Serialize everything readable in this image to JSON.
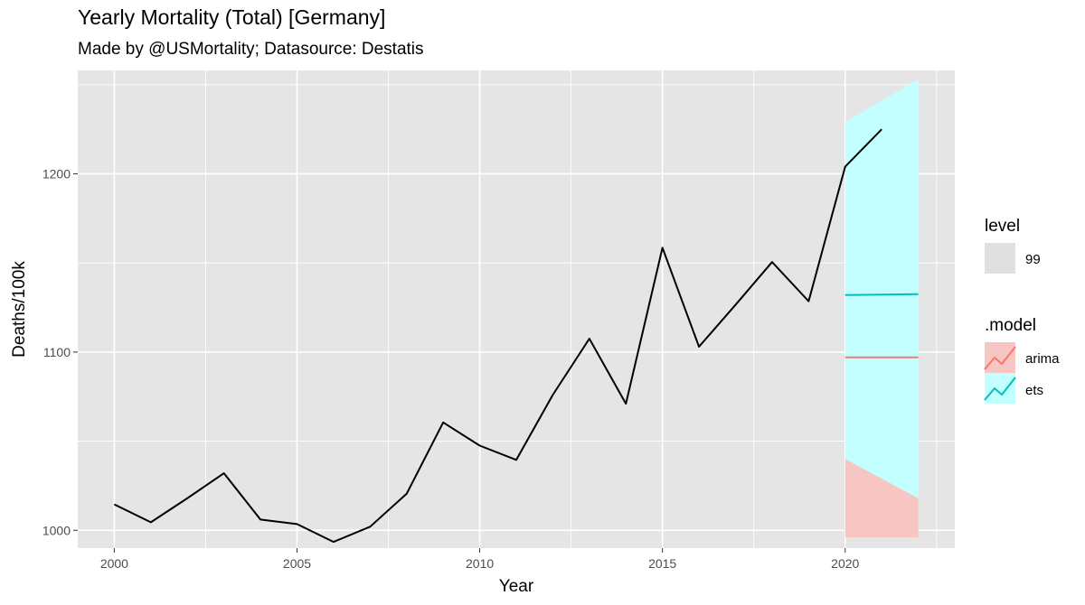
{
  "title": "Yearly Mortality (Total) [Germany]",
  "subtitle": "Made by @USMortality; Datasource: Destatis",
  "colors": {
    "panel": "#e5e5e5",
    "grid": "#ffffff",
    "observed": "#000000",
    "arima": "#f8766d",
    "ets": "#00bfc4",
    "arima_band": "#f8c6c2",
    "ets_band": "#c3ffff",
    "level_key": "#e0e0e0"
  },
  "chart_data": {
    "type": "line",
    "title": "Yearly Mortality (Total) [Germany]",
    "subtitle": "Made by @USMortality; Datasource: Destatis",
    "xlabel": "Year",
    "ylabel": "Deaths/100k",
    "xlim": [
      1999,
      2023
    ],
    "ylim": [
      990,
      1258
    ],
    "x_ticks": [
      2000,
      2005,
      2010,
      2015,
      2020
    ],
    "y_ticks": [
      1000,
      1100,
      1200
    ],
    "grid": true,
    "legend_position": "right",
    "series": [
      {
        "x": [
          2000,
          2001,
          2002,
          2003,
          2004,
          2005,
          2006,
          2007,
          2008,
          2009,
          2010,
          2011,
          2012,
          2013,
          2014,
          2015,
          2016,
          2017,
          2018,
          2019,
          2020,
          2021
        ],
        "values": [
          1014.5,
          1004.5,
          1018,
          1032,
          1006,
          1003.5,
          993.5,
          1002,
          1020.5,
          1060.5,
          1047.5,
          1039.5,
          1076,
          1107.5,
          1071,
          1158.5,
          1103,
          1126.5,
          1150.5,
          1128.5,
          1204,
          1225
        ]
      },
      {
        "name": "arima",
        "x": [
          2020,
          2022
        ],
        "values": [
          1097,
          1097
        ],
        "interval": {
          "level": 99,
          "lower": [
            996,
            996
          ],
          "upper": [
            1040,
            1018
          ]
        }
      },
      {
        "name": "ets",
        "x": [
          2020,
          2022
        ],
        "values": [
          1132,
          1132.5
        ],
        "interval": {
          "level": 99,
          "lower": [
            1040,
            1018
          ],
          "upper": [
            1229,
            1253
          ]
        }
      }
    ],
    "legend": {
      "level": {
        "title": "level",
        "entries": [
          "99"
        ]
      },
      "model": {
        "title": ".model",
        "entries": [
          "arima",
          "ets"
        ]
      }
    }
  }
}
